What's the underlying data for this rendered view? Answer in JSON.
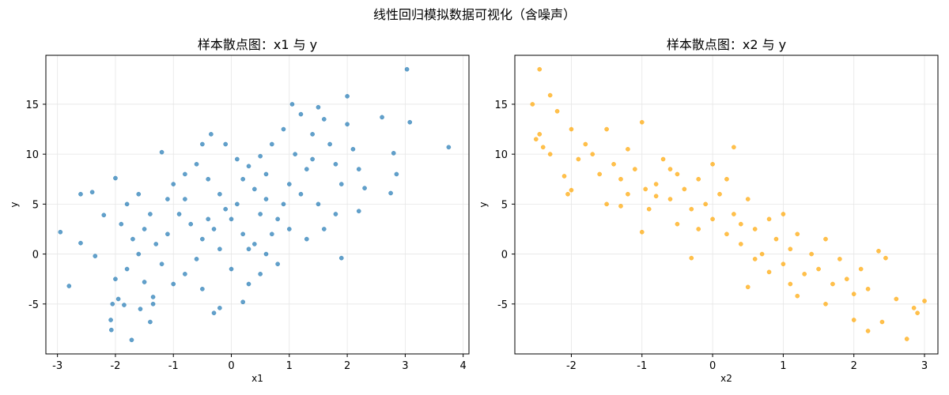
{
  "figure_title": "线性回归模拟数据可视化（含噪声）",
  "chart_data": [
    {
      "type": "scatter",
      "title": "样本散点图：x1 与 y",
      "xlabel": "x1",
      "ylabel": "y",
      "xlim": [
        -3.2,
        4.1
      ],
      "ylim": [
        -10,
        19.9
      ],
      "xticks": [
        -3,
        -2,
        -1,
        0,
        1,
        2,
        3,
        4
      ],
      "yticks": [
        -5,
        0,
        5,
        10,
        15
      ],
      "grid": true,
      "color": "#1f77b4",
      "points": [
        [
          3.03,
          18.5
        ],
        [
          3.75,
          10.7
        ],
        [
          3.08,
          13.2
        ],
        [
          2.0,
          15.8
        ],
        [
          2.6,
          13.7
        ],
        [
          2.8,
          10.1
        ],
        [
          2.85,
          8.0
        ],
        [
          2.75,
          6.1
        ],
        [
          2.1,
          10.5
        ],
        [
          2.0,
          13.0
        ],
        [
          2.2,
          4.3
        ],
        [
          2.3,
          6.6
        ],
        [
          1.9,
          -0.4
        ],
        [
          1.05,
          15.0
        ],
        [
          1.5,
          14.7
        ],
        [
          1.2,
          14.0
        ],
        [
          1.6,
          13.5
        ],
        [
          1.4,
          12.0
        ],
        [
          1.7,
          11.0
        ],
        [
          1.8,
          9.0
        ],
        [
          1.3,
          8.5
        ],
        [
          1.1,
          10.0
        ],
        [
          0.9,
          12.5
        ],
        [
          0.7,
          11.0
        ],
        [
          0.5,
          9.8
        ],
        [
          0.6,
          8.0
        ],
        [
          1.0,
          7.0
        ],
        [
          1.2,
          6.0
        ],
        [
          1.5,
          5.0
        ],
        [
          1.8,
          4.0
        ],
        [
          1.6,
          2.5
        ],
        [
          1.3,
          1.5
        ],
        [
          1.0,
          2.5
        ],
        [
          0.8,
          3.5
        ],
        [
          0.6,
          5.5
        ],
        [
          0.4,
          6.5
        ],
        [
          0.3,
          8.8
        ],
        [
          0.2,
          7.5
        ],
        [
          0.1,
          5.0
        ],
        [
          0.0,
          3.5
        ],
        [
          0.2,
          2.0
        ],
        [
          0.4,
          1.0
        ],
        [
          0.6,
          0.0
        ],
        [
          0.8,
          -1.0
        ],
        [
          0.5,
          -2.0
        ],
        [
          0.3,
          -3.0
        ],
        [
          0.2,
          -4.8
        ],
        [
          0.0,
          -1.5
        ],
        [
          -0.2,
          0.5
        ],
        [
          -0.3,
          2.5
        ],
        [
          -0.1,
          4.5
        ],
        [
          -0.2,
          6.0
        ],
        [
          -0.4,
          7.5
        ],
        [
          -0.35,
          12.0
        ],
        [
          -0.5,
          11.0
        ],
        [
          -0.6,
          9.0
        ],
        [
          -0.8,
          8.0
        ],
        [
          -1.0,
          7.0
        ],
        [
          -1.2,
          10.2
        ],
        [
          -1.1,
          5.5
        ],
        [
          -0.9,
          4.0
        ],
        [
          -0.7,
          3.0
        ],
        [
          -0.5,
          1.5
        ],
        [
          -0.6,
          -0.5
        ],
        [
          -0.8,
          -2.0
        ],
        [
          -0.3,
          -5.9
        ],
        [
          -0.2,
          -5.4
        ],
        [
          -0.5,
          -3.5
        ],
        [
          -1.0,
          -3.0
        ],
        [
          -1.2,
          -1.0
        ],
        [
          -1.3,
          1.0
        ],
        [
          -1.5,
          2.5
        ],
        [
          -1.4,
          4.0
        ],
        [
          -1.6,
          6.0
        ],
        [
          -1.8,
          5.0
        ],
        [
          -2.0,
          7.6
        ],
        [
          -1.9,
          3.0
        ],
        [
          -1.7,
          1.5
        ],
        [
          -1.6,
          0.0
        ],
        [
          -1.8,
          -1.5
        ],
        [
          -2.0,
          -2.5
        ],
        [
          -1.5,
          -2.8
        ],
        [
          -2.95,
          2.2
        ],
        [
          -2.8,
          -3.2
        ],
        [
          -2.6,
          6.0
        ],
        [
          -2.4,
          6.2
        ],
        [
          -2.6,
          1.1
        ],
        [
          -2.35,
          -0.2
        ],
        [
          -2.2,
          3.9
        ],
        [
          -2.05,
          -5.0
        ],
        [
          -2.08,
          -6.6
        ],
        [
          -2.07,
          -7.6
        ],
        [
          -1.72,
          -8.6
        ],
        [
          -1.95,
          -4.5
        ],
        [
          -1.85,
          -5.1
        ],
        [
          -1.57,
          -5.5
        ],
        [
          -1.4,
          -6.8
        ],
        [
          -1.35,
          -4.3
        ],
        [
          -1.35,
          -5.0
        ],
        [
          0.1,
          9.5
        ],
        [
          -0.1,
          11.0
        ],
        [
          0.5,
          4.0
        ],
        [
          0.7,
          2.0
        ],
        [
          -0.4,
          3.5
        ],
        [
          -0.8,
          5.5
        ],
        [
          1.4,
          9.5
        ],
        [
          1.9,
          7.0
        ],
        [
          2.2,
          8.5
        ],
        [
          0.9,
          5.0
        ],
        [
          -1.1,
          2.0
        ],
        [
          0.3,
          0.5
        ]
      ]
    },
    {
      "type": "scatter",
      "title": "样本散点图：x2 与 y",
      "xlabel": "x2",
      "ylabel": "y",
      "xlim": [
        -2.8,
        3.19
      ],
      "ylim": [
        -10,
        19.9
      ],
      "xticks": [
        -2,
        -1,
        0,
        1,
        2,
        3
      ],
      "yticks": [
        -5,
        0,
        5,
        10,
        15
      ],
      "grid": true,
      "color": "#ffa500",
      "points": [
        [
          -2.45,
          18.5
        ],
        [
          -2.55,
          15.0
        ],
        [
          -2.3,
          15.9
        ],
        [
          -2.2,
          14.3
        ],
        [
          -2.5,
          11.5
        ],
        [
          -2.45,
          12.0
        ],
        [
          -2.4,
          10.7
        ],
        [
          -2.3,
          10.0
        ],
        [
          -2.1,
          7.8
        ],
        [
          -2.05,
          6.0
        ],
        [
          -2.0,
          6.4
        ],
        [
          -2.0,
          12.5
        ],
        [
          -1.8,
          11.0
        ],
        [
          -1.9,
          9.5
        ],
        [
          -1.7,
          10.0
        ],
        [
          -1.6,
          8.0
        ],
        [
          -1.5,
          12.5
        ],
        [
          -1.4,
          9.0
        ],
        [
          -1.3,
          7.5
        ],
        [
          -1.2,
          10.5
        ],
        [
          -1.1,
          8.5
        ],
        [
          -1.0,
          13.2
        ],
        [
          -0.95,
          6.5
        ],
        [
          -1.5,
          5.0
        ],
        [
          -1.2,
          6.0
        ],
        [
          -1.0,
          2.2
        ],
        [
          -0.9,
          4.5
        ],
        [
          -0.8,
          7.0
        ],
        [
          -0.7,
          9.5
        ],
        [
          -0.6,
          5.5
        ],
        [
          -0.5,
          8.0
        ],
        [
          -0.5,
          3.0
        ],
        [
          -0.4,
          6.5
        ],
        [
          -0.3,
          4.5
        ],
        [
          -0.3,
          -0.4
        ],
        [
          -0.2,
          7.5
        ],
        [
          -0.1,
          5.0
        ],
        [
          0.0,
          3.5
        ],
        [
          0.0,
          9.0
        ],
        [
          0.1,
          6.0
        ],
        [
          0.2,
          2.0
        ],
        [
          0.3,
          10.7
        ],
        [
          0.3,
          4.0
        ],
        [
          0.4,
          1.0
        ],
        [
          0.5,
          5.5
        ],
        [
          0.5,
          -3.3
        ],
        [
          0.6,
          2.5
        ],
        [
          0.7,
          0.0
        ],
        [
          0.8,
          3.5
        ],
        [
          0.9,
          1.5
        ],
        [
          1.0,
          -1.0
        ],
        [
          1.0,
          4.0
        ],
        [
          1.1,
          0.5
        ],
        [
          1.2,
          -4.2
        ],
        [
          1.2,
          2.0
        ],
        [
          1.3,
          -2.0
        ],
        [
          1.4,
          0.0
        ],
        [
          1.5,
          -1.5
        ],
        [
          1.6,
          1.5
        ],
        [
          1.6,
          -5.0
        ],
        [
          1.7,
          -3.0
        ],
        [
          1.8,
          -0.5
        ],
        [
          1.9,
          -2.5
        ],
        [
          2.0,
          -6.6
        ],
        [
          2.0,
          -4.0
        ],
        [
          2.1,
          -1.5
        ],
        [
          2.2,
          -7.7
        ],
        [
          2.2,
          -3.5
        ],
        [
          2.35,
          0.3
        ],
        [
          2.45,
          -0.4
        ],
        [
          2.4,
          -6.8
        ],
        [
          2.6,
          -4.5
        ],
        [
          2.75,
          -8.5
        ],
        [
          2.85,
          -5.4
        ],
        [
          2.9,
          -5.9
        ],
        [
          3.0,
          -4.7
        ],
        [
          -0.2,
          2.5
        ],
        [
          0.2,
          7.5
        ],
        [
          -0.6,
          8.5
        ],
        [
          0.8,
          -1.8
        ],
        [
          1.1,
          -3.0
        ],
        [
          -1.3,
          4.8
        ],
        [
          0.4,
          3.0
        ],
        [
          -0.8,
          5.8
        ],
        [
          0.6,
          -0.5
        ]
      ]
    }
  ]
}
